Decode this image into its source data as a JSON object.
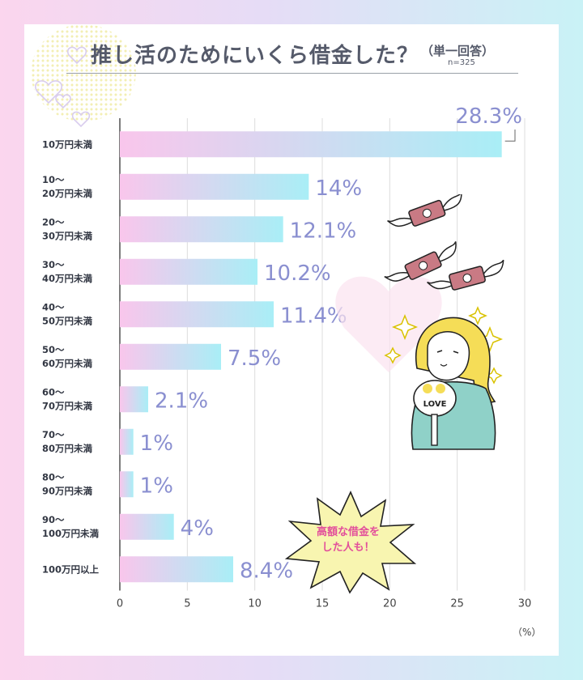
{
  "title": "推し活のためにいくら借金した？",
  "subtitle": "（単一回答）",
  "sample_size": "n=325",
  "unit_label": "（%）",
  "callout": {
    "line1": "高額な借金を",
    "line2": "した人も！"
  },
  "illustration": {
    "fan_text": "LOVE"
  },
  "colors": {
    "bar_start": "#f9c6ec",
    "bar_end": "#a9eef6",
    "value_text": "#8a8fd0",
    "callout_text": "#e24f9b"
  },
  "chart_data": {
    "type": "bar",
    "orientation": "horizontal",
    "title": "推し活のためにいくら借金した？",
    "xlabel": "（%）",
    "xlim": [
      0,
      30
    ],
    "xticks": [
      0,
      5,
      10,
      15,
      20,
      25,
      30
    ],
    "grid": true,
    "categories": [
      [
        "10万円未満"
      ],
      [
        "10～",
        "20万円未満"
      ],
      [
        "20～",
        "30万円未満"
      ],
      [
        "30～",
        "40万円未満"
      ],
      [
        "40～",
        "50万円未満"
      ],
      [
        "50～",
        "60万円未満"
      ],
      [
        "60～",
        "70万円未満"
      ],
      [
        "70～",
        "80万円未満"
      ],
      [
        "80～",
        "90万円未満"
      ],
      [
        "90～",
        "100万円未満"
      ],
      [
        "100万円以上"
      ]
    ],
    "values": [
      28.3,
      14,
      12.1,
      10.2,
      11.4,
      7.5,
      2.1,
      1,
      1,
      4,
      8.4
    ],
    "value_labels": [
      "28.3%",
      "14%",
      "12.1%",
      "10.2%",
      "11.4%",
      "7.5%",
      "2.1%",
      "1%",
      "1%",
      "4%",
      "8.4%"
    ]
  }
}
